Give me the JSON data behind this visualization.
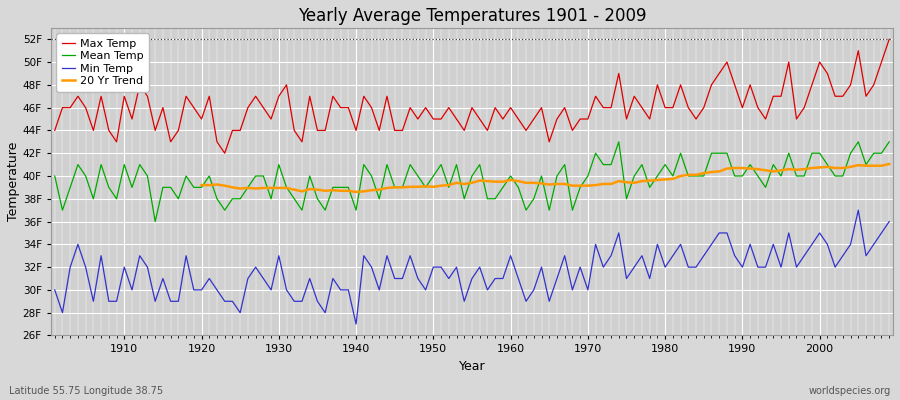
{
  "title": "Yearly Average Temperatures 1901 - 2009",
  "xlabel": "Year",
  "ylabel": "Temperature",
  "lat_lon_label": "Latitude 55.75 Longitude 38.75",
  "source_label": "worldspecies.org",
  "year_start": 1901,
  "year_end": 2009,
  "background_color": "#d8d8d8",
  "plot_bg_color": "#d0d0d0",
  "grid_color": "#bcbcbc",
  "ylim": [
    26,
    53
  ],
  "yticks": [
    26,
    28,
    30,
    32,
    34,
    36,
    38,
    40,
    42,
    44,
    46,
    48,
    50,
    52
  ],
  "ytick_labels": [
    "26F",
    "28F",
    "30F",
    "32F",
    "34F",
    "36F",
    "38F",
    "40F",
    "42F",
    "44F",
    "46F",
    "48F",
    "50F",
    "52F"
  ],
  "max_temp": [
    44,
    46,
    46,
    47,
    46,
    44,
    47,
    44,
    43,
    47,
    45,
    48,
    47,
    44,
    46,
    43,
    44,
    47,
    46,
    45,
    47,
    43,
    42,
    44,
    44,
    46,
    47,
    46,
    45,
    47,
    48,
    44,
    43,
    47,
    44,
    44,
    47,
    46,
    46,
    44,
    47,
    46,
    44,
    47,
    44,
    44,
    46,
    45,
    46,
    45,
    45,
    46,
    45,
    44,
    46,
    45,
    44,
    46,
    45,
    46,
    45,
    44,
    45,
    46,
    43,
    45,
    46,
    44,
    45,
    45,
    47,
    46,
    46,
    49,
    45,
    47,
    46,
    45,
    48,
    46,
    46,
    48,
    46,
    45,
    46,
    48,
    49,
    50,
    48,
    46,
    48,
    46,
    45,
    47,
    47,
    50,
    45,
    46,
    48,
    50,
    49,
    47,
    47,
    48,
    51,
    47,
    48,
    50,
    52
  ],
  "mean_temp": [
    40,
    37,
    39,
    41,
    40,
    38,
    41,
    39,
    38,
    41,
    39,
    41,
    40,
    36,
    39,
    39,
    38,
    40,
    39,
    39,
    40,
    38,
    37,
    38,
    38,
    39,
    40,
    40,
    38,
    41,
    39,
    38,
    37,
    40,
    38,
    37,
    39,
    39,
    39,
    37,
    41,
    40,
    38,
    41,
    39,
    39,
    41,
    40,
    39,
    40,
    41,
    39,
    41,
    38,
    40,
    41,
    38,
    38,
    39,
    40,
    39,
    37,
    38,
    40,
    37,
    40,
    41,
    37,
    39,
    40,
    42,
    41,
    41,
    43,
    38,
    40,
    41,
    39,
    40,
    41,
    40,
    42,
    40,
    40,
    40,
    42,
    42,
    42,
    40,
    40,
    41,
    40,
    39,
    41,
    40,
    42,
    40,
    40,
    42,
    42,
    41,
    40,
    40,
    42,
    43,
    41,
    42,
    42,
    43
  ],
  "min_temp": [
    30,
    28,
    32,
    34,
    32,
    29,
    33,
    29,
    29,
    32,
    30,
    33,
    32,
    29,
    31,
    29,
    29,
    33,
    30,
    30,
    31,
    30,
    29,
    29,
    28,
    31,
    32,
    31,
    30,
    33,
    30,
    29,
    29,
    31,
    29,
    28,
    31,
    30,
    30,
    27,
    33,
    32,
    30,
    33,
    31,
    31,
    33,
    31,
    30,
    32,
    32,
    31,
    32,
    29,
    31,
    32,
    30,
    31,
    31,
    33,
    31,
    29,
    30,
    32,
    29,
    31,
    33,
    30,
    32,
    30,
    34,
    32,
    33,
    35,
    31,
    32,
    33,
    31,
    34,
    32,
    33,
    34,
    32,
    32,
    33,
    34,
    35,
    35,
    33,
    32,
    34,
    32,
    32,
    34,
    32,
    35,
    32,
    33,
    34,
    35,
    34,
    32,
    33,
    34,
    37,
    33,
    34,
    35,
    36
  ],
  "trend_color": "#ff9900",
  "max_color": "#dd0000",
  "mean_color": "#00aa00",
  "min_color": "#3333cc",
  "trend_window": 20
}
